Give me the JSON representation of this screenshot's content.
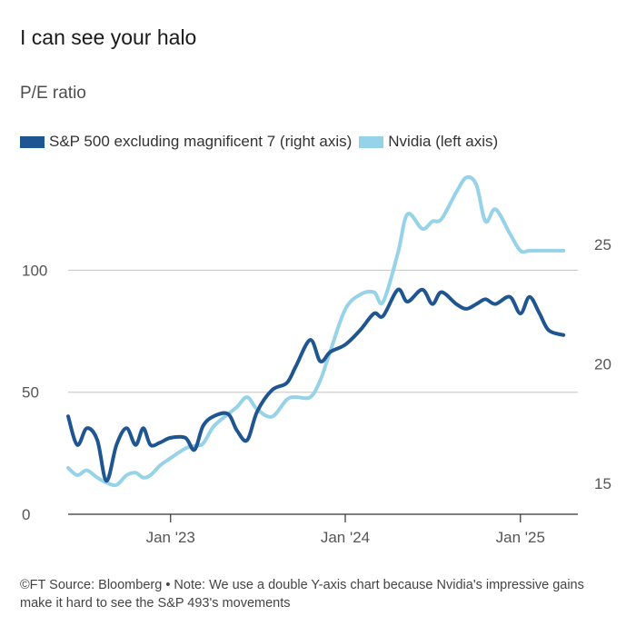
{
  "header": {
    "title": "I can see your halo",
    "subtitle": "P/E ratio"
  },
  "footer": {
    "text": "©FT Source: Bloomberg • Note: We use a double Y-axis chart because Nvidia's impressive gains make it hard to see the S&P 493's movements"
  },
  "colors": {
    "sp500": "#1f5591",
    "nvidia": "#96d2e8",
    "grid": "#c8c3ba",
    "axis": "#333333"
  },
  "chart_data": {
    "type": "line",
    "x_domain": [
      "2022-06",
      "2025-05"
    ],
    "xticks": [
      {
        "x": "2023-01",
        "label": "Jan '23"
      },
      {
        "x": "2024-01",
        "label": "Jan '24"
      },
      {
        "x": "2025-01",
        "label": "Jan '25"
      }
    ],
    "left_axis": {
      "range": [
        0,
        140
      ],
      "ticks": [
        0,
        50,
        100
      ],
      "gridlines": [
        50,
        100
      ]
    },
    "right_axis": {
      "range": [
        13.7,
        28
      ],
      "ticks": [
        15,
        20,
        25
      ]
    },
    "legend_position": "top-left",
    "series": [
      {
        "name": "S&P 500 excluding magnificent 7 (right axis)",
        "axis": "right",
        "points": [
          {
            "x": "2022-06-01",
            "y": 17.8
          },
          {
            "x": "2022-06-20",
            "y": 16.6
          },
          {
            "x": "2022-07-10",
            "y": 17.3
          },
          {
            "x": "2022-08-01",
            "y": 16.8
          },
          {
            "x": "2022-08-20",
            "y": 15.1
          },
          {
            "x": "2022-09-10",
            "y": 16.6
          },
          {
            "x": "2022-10-01",
            "y": 17.3
          },
          {
            "x": "2022-10-20",
            "y": 16.6
          },
          {
            "x": "2022-11-05",
            "y": 17.3
          },
          {
            "x": "2022-11-20",
            "y": 16.6
          },
          {
            "x": "2022-12-10",
            "y": 16.7
          },
          {
            "x": "2023-01-01",
            "y": 16.9
          },
          {
            "x": "2023-02-01",
            "y": 16.9
          },
          {
            "x": "2023-02-20",
            "y": 16.4
          },
          {
            "x": "2023-03-10",
            "y": 17.4
          },
          {
            "x": "2023-04-01",
            "y": 17.8
          },
          {
            "x": "2023-05-01",
            "y": 17.9
          },
          {
            "x": "2023-05-20",
            "y": 17.2
          },
          {
            "x": "2023-06-10",
            "y": 16.8
          },
          {
            "x": "2023-07-01",
            "y": 18.0
          },
          {
            "x": "2023-08-01",
            "y": 18.9
          },
          {
            "x": "2023-09-01",
            "y": 19.2
          },
          {
            "x": "2023-09-20",
            "y": 19.9
          },
          {
            "x": "2023-10-20",
            "y": 21.0
          },
          {
            "x": "2023-11-10",
            "y": 20.1
          },
          {
            "x": "2023-12-01",
            "y": 20.5
          },
          {
            "x": "2024-01-01",
            "y": 20.8
          },
          {
            "x": "2024-02-01",
            "y": 21.4
          },
          {
            "x": "2024-03-01",
            "y": 22.1
          },
          {
            "x": "2024-03-20",
            "y": 22.0
          },
          {
            "x": "2024-04-20",
            "y": 23.1
          },
          {
            "x": "2024-05-10",
            "y": 22.6
          },
          {
            "x": "2024-06-10",
            "y": 23.1
          },
          {
            "x": "2024-07-01",
            "y": 22.5
          },
          {
            "x": "2024-07-20",
            "y": 23.0
          },
          {
            "x": "2024-08-20",
            "y": 22.5
          },
          {
            "x": "2024-09-10",
            "y": 22.3
          },
          {
            "x": "2024-10-01",
            "y": 22.5
          },
          {
            "x": "2024-10-20",
            "y": 22.7
          },
          {
            "x": "2024-11-10",
            "y": 22.5
          },
          {
            "x": "2024-12-10",
            "y": 22.8
          },
          {
            "x": "2025-01-01",
            "y": 22.1
          },
          {
            "x": "2025-01-20",
            "y": 22.8
          },
          {
            "x": "2025-02-10",
            "y": 22.1
          },
          {
            "x": "2025-03-01",
            "y": 21.4
          },
          {
            "x": "2025-04-01",
            "y": 21.2
          }
        ]
      },
      {
        "name": "Nvidia (left axis)",
        "axis": "left",
        "points": [
          {
            "x": "2022-06-01",
            "y": 19
          },
          {
            "x": "2022-06-20",
            "y": 16
          },
          {
            "x": "2022-07-10",
            "y": 18
          },
          {
            "x": "2022-08-01",
            "y": 15
          },
          {
            "x": "2022-08-20",
            "y": 13
          },
          {
            "x": "2022-09-10",
            "y": 12
          },
          {
            "x": "2022-10-01",
            "y": 16
          },
          {
            "x": "2022-10-20",
            "y": 17
          },
          {
            "x": "2022-11-05",
            "y": 15
          },
          {
            "x": "2022-11-20",
            "y": 16
          },
          {
            "x": "2022-12-10",
            "y": 20
          },
          {
            "x": "2023-01-01",
            "y": 23
          },
          {
            "x": "2023-02-01",
            "y": 27
          },
          {
            "x": "2023-02-20",
            "y": 28
          },
          {
            "x": "2023-03-10",
            "y": 29
          },
          {
            "x": "2023-04-01",
            "y": 36
          },
          {
            "x": "2023-05-01",
            "y": 41
          },
          {
            "x": "2023-05-20",
            "y": 44
          },
          {
            "x": "2023-06-10",
            "y": 48
          },
          {
            "x": "2023-07-01",
            "y": 43
          },
          {
            "x": "2023-08-01",
            "y": 40
          },
          {
            "x": "2023-09-01",
            "y": 47
          },
          {
            "x": "2023-09-20",
            "y": 48
          },
          {
            "x": "2023-10-20",
            "y": 48
          },
          {
            "x": "2023-11-10",
            "y": 55
          },
          {
            "x": "2023-12-01",
            "y": 67
          },
          {
            "x": "2024-01-01",
            "y": 84
          },
          {
            "x": "2024-02-01",
            "y": 90
          },
          {
            "x": "2024-03-01",
            "y": 91
          },
          {
            "x": "2024-03-20",
            "y": 87
          },
          {
            "x": "2024-04-20",
            "y": 107
          },
          {
            "x": "2024-05-10",
            "y": 123
          },
          {
            "x": "2024-06-10",
            "y": 117
          },
          {
            "x": "2024-07-01",
            "y": 120
          },
          {
            "x": "2024-07-20",
            "y": 121
          },
          {
            "x": "2024-08-20",
            "y": 132
          },
          {
            "x": "2024-09-10",
            "y": 138
          },
          {
            "x": "2024-10-01",
            "y": 135
          },
          {
            "x": "2024-10-20",
            "y": 120
          },
          {
            "x": "2024-11-10",
            "y": 125
          },
          {
            "x": "2024-12-10",
            "y": 115
          },
          {
            "x": "2025-01-01",
            "y": 108
          },
          {
            "x": "2025-01-20",
            "y": 108
          },
          {
            "x": "2025-02-10",
            "y": 108
          },
          {
            "x": "2025-03-01",
            "y": 108
          },
          {
            "x": "2025-04-01",
            "y": 108
          }
        ]
      }
    ]
  }
}
